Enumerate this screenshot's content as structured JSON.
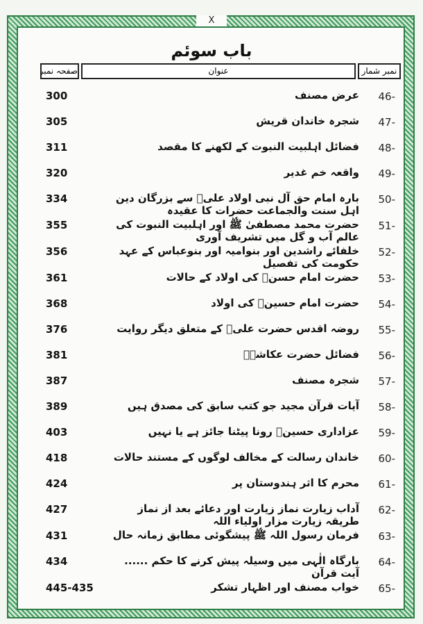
{
  "close_mark": "X",
  "chapter_title": "باب سوئم",
  "headers": {
    "number": "نمبر شمار",
    "title": "عنوان",
    "page": "صفحہ نمبر"
  },
  "rows": [
    {
      "num": "46-",
      "title": "عرض مصنف",
      "page": "300"
    },
    {
      "num": "47-",
      "title": "شجرہ خاندان قریش",
      "page": "305"
    },
    {
      "num": "48-",
      "title": "فضائل اہلبیت النبوت کے لکھنے کا مقصد",
      "page": "311"
    },
    {
      "num": "49-",
      "title": "واقعہ خم غدیر",
      "page": "320"
    },
    {
      "num": "50-",
      "title": "بارہ امام حق آل نبی اولاد علیؑ سے بزرگان دین اہل سنت والجماعت حضرات کا عقیدہ",
      "page": "334"
    },
    {
      "num": "51-",
      "title": "حضرت محمد مصطفیٰ ﷺ اور اہلبیت النبوت کی عالم آب و گل میں تشریف آوری",
      "page": "355"
    },
    {
      "num": "52-",
      "title": "خلفائے راشدین اور بنوامیہ اور بنوعباس کے عہد حکومت کی تفصیل",
      "page": "356"
    },
    {
      "num": "53-",
      "title": "حضرت امام حسنؑ کی اولاد کے حالات",
      "page": "361"
    },
    {
      "num": "54-",
      "title": "حضرت امام حسینؑ کی اولاد",
      "page": "368"
    },
    {
      "num": "55-",
      "title": "روضہ اقدس حضرت علیؑ کے متعلق دیگر روایت",
      "page": "376"
    },
    {
      "num": "56-",
      "title": "فضائل حضرت عکاشہؓ",
      "page": "381"
    },
    {
      "num": "57-",
      "title": "شجرہ مصنف",
      "page": "387"
    },
    {
      "num": "58-",
      "title": "آیات قرآن مجید جو کتب سابق کی مصدق ہیں",
      "page": "389"
    },
    {
      "num": "59-",
      "title": "عزاداری حسینؑ رونا پیٹنا جائز ہے یا نہیں",
      "page": "403"
    },
    {
      "num": "60-",
      "title": "خاندان رسالت کے مخالف لوگوں کے مستند حالات",
      "page": "418"
    },
    {
      "num": "61-",
      "title": "محرم کا اثر ہندوستان پر",
      "page": "424"
    },
    {
      "num": "62-",
      "title": "آداب زیارت نماز زیارت اور دعائے بعد از نماز طریقہ زیارت مزار اولیاء اللہ",
      "page": "427"
    },
    {
      "num": "63-",
      "title": "فرمان رسول اللہ ﷺ پیشگوئی مطابق زمانہ حال",
      "page": "431"
    },
    {
      "num": "64-",
      "title": "بارگاہ الٰہی میں وسیلہ پیش کرنے کا حکم ...... آیت قرآن",
      "page": "434"
    },
    {
      "num": "65-",
      "title": "خواب مصنف اور اظہار تشکر",
      "page": "445-435"
    }
  ]
}
